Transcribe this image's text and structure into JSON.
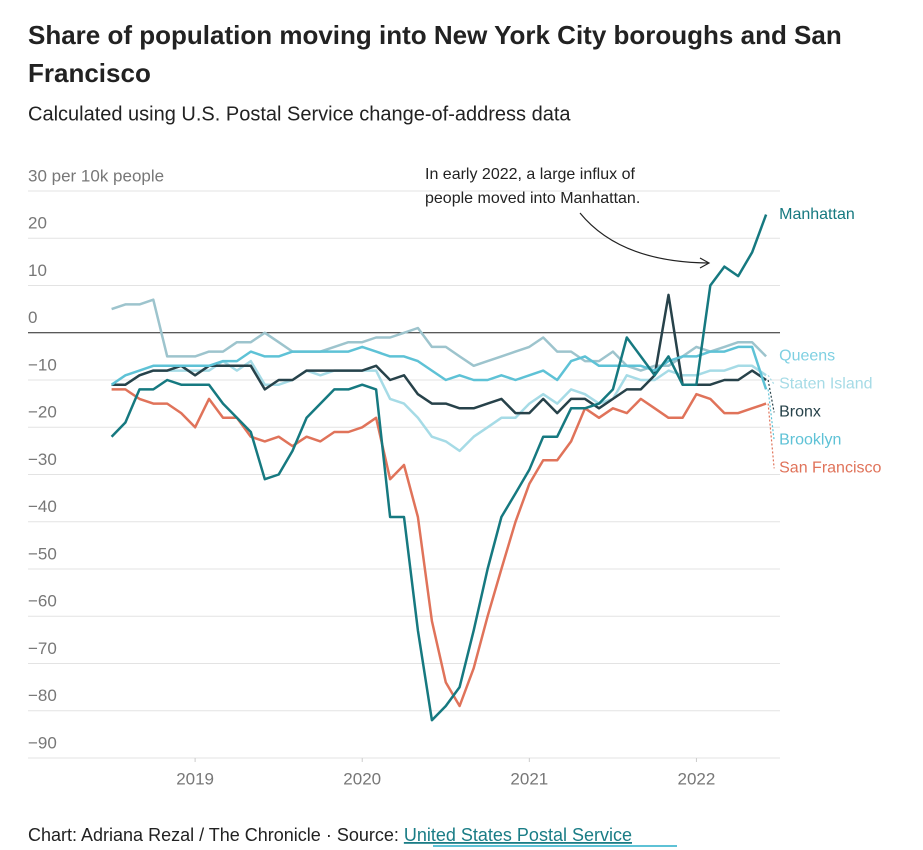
{
  "chart_data": {
    "type": "line",
    "title": "Share of population moving into New York City boroughs and San Francisco",
    "subtitle": "Calculated using U.S. Postal Service change-of-address data",
    "annotation": [
      "In early 2022, a large influx of",
      "people moved into Manhattan."
    ],
    "source_prefix": "Chart: Adriana Rezal / The Chronicle · Source: ",
    "source_link": "United States Postal Service",
    "x": [
      2018.5,
      2018.583,
      2018.667,
      2018.75,
      2018.833,
      2018.917,
      2019,
      2019.083,
      2019.167,
      2019.25,
      2019.333,
      2019.417,
      2019.5,
      2019.583,
      2019.667,
      2019.75,
      2019.833,
      2019.917,
      2020,
      2020.083,
      2020.167,
      2020.25,
      2020.333,
      2020.417,
      2020.5,
      2020.583,
      2020.667,
      2020.75,
      2020.833,
      2020.917,
      2021,
      2021.083,
      2021.167,
      2021.25,
      2021.333,
      2021.417,
      2021.5,
      2021.583,
      2021.667,
      2021.75,
      2021.833,
      2021.917,
      2022,
      2022.083,
      2022.167,
      2022.25,
      2022.333,
      2022.417
    ],
    "xlim": [
      2018,
      2022.5
    ],
    "xticks": [
      2019,
      2020,
      2021,
      2022
    ],
    "ylim": [
      -90,
      30
    ],
    "yticks": [
      {
        "value": 30,
        "label": "30 per 10k people"
      },
      20,
      10,
      0,
      {
        "value": -10,
        "label": "−10"
      },
      {
        "value": -20,
        "label": "−20"
      },
      {
        "value": -30,
        "label": "−30"
      },
      {
        "value": -40,
        "label": "−40"
      },
      {
        "value": -50,
        "label": "−50"
      },
      {
        "value": -60,
        "label": "−60"
      },
      {
        "value": -70,
        "label": "−70"
      },
      {
        "value": -80,
        "label": "−80"
      },
      {
        "value": -90,
        "label": "−90"
      }
    ],
    "grid": true,
    "series": [
      {
        "name": "Queens",
        "color": "#9dc4cd",
        "label_color": "#7fd0e2",
        "values": [
          5,
          6,
          6,
          7,
          -5,
          -5,
          -5,
          -4,
          -4,
          -2,
          -2,
          0,
          -2,
          -4,
          -4,
          -4,
          -3,
          -2,
          -2,
          -1,
          -1,
          0,
          1,
          -3,
          -3,
          -5,
          -7,
          -6,
          -5,
          -4,
          -3,
          -1,
          -4,
          -4,
          -6,
          -6,
          -4,
          -7,
          -8,
          -7,
          -7,
          -5,
          -3,
          -4,
          -3,
          -2,
          -2,
          -5
        ]
      },
      {
        "name": "Staten Island",
        "color": "#a6dbe6",
        "label_color": "#a6dbe6",
        "values": [
          -11,
          -11,
          -9,
          -8,
          -8,
          -8,
          -8,
          -8,
          -6,
          -8,
          -6,
          -11,
          -11,
          -10,
          -8,
          -9,
          -8,
          -8,
          -8,
          -8,
          -14,
          -15,
          -18,
          -22,
          -23,
          -25,
          -22,
          -20,
          -18,
          -18,
          -15,
          -13,
          -15,
          -12,
          -13,
          -15,
          -14,
          -9,
          -10,
          -10,
          -8,
          -9,
          -9,
          -8,
          -8,
          -7,
          -7,
          -9
        ]
      },
      {
        "name": "Bronx",
        "color": "#27424a",
        "label_color": "#27424a",
        "values": [
          -11,
          -11,
          -9,
          -8,
          -8,
          -7,
          -9,
          -7,
          -7,
          -7,
          -7,
          -12,
          -10,
          -10,
          -8,
          -8,
          -8,
          -8,
          -8,
          -7,
          -10,
          -9,
          -13,
          -15,
          -15,
          -16,
          -16,
          -15,
          -14,
          -17,
          -17,
          -14,
          -17,
          -14,
          -14,
          -16,
          -14,
          -12,
          -12,
          -9,
          8,
          -11,
          -11,
          -11,
          -10,
          -10,
          -8,
          -10
        ]
      },
      {
        "name": "Brooklyn",
        "color": "#5ec2d6",
        "label_color": "#5ec2d6",
        "values": [
          -11,
          -9,
          -8,
          -7,
          -7,
          -7,
          -7,
          -7,
          -6,
          -6,
          -4,
          -5,
          -5,
          -4,
          -4,
          -4,
          -4,
          -4,
          -3,
          -4,
          -5,
          -5,
          -6,
          -8,
          -10,
          -9,
          -10,
          -10,
          -9,
          -10,
          -9,
          -8,
          -10,
          -6,
          -5,
          -7,
          -7,
          -7,
          -7,
          -8,
          -6,
          -5,
          -5,
          -4,
          -4,
          -3,
          -3,
          -12
        ]
      },
      {
        "name": "San Francisco",
        "color": "#e0735a",
        "label_color": "#e0735a",
        "values": [
          -12,
          -12,
          -14,
          -15,
          -15,
          -17,
          -20,
          -14,
          -18,
          -18,
          -22,
          -23,
          -22,
          -24,
          -22,
          -23,
          -21,
          -21,
          -20,
          -18,
          -31,
          -28,
          -39,
          -61,
          -74,
          -79,
          -71,
          -60,
          -50,
          -40,
          -32,
          -27,
          -27,
          -23,
          -16,
          -18,
          -16,
          -17,
          -14,
          -16,
          -18,
          -18,
          -13,
          -14,
          -17,
          -17,
          -16,
          -15
        ]
      },
      {
        "name": "Manhattan",
        "color": "#167980",
        "label_color": "#167980",
        "values": [
          -22,
          -19,
          -12,
          -12,
          -10,
          -11,
          -11,
          -11,
          -15,
          -18,
          -21,
          -31,
          -30,
          -25,
          -18,
          -15,
          -12,
          -12,
          -11,
          -12,
          -39,
          -39,
          -63,
          -82,
          -79,
          -75,
          -63,
          -50,
          -39,
          -34,
          -29,
          -22,
          -22,
          -16,
          -16,
          -15,
          -12,
          -1,
          -5,
          -9,
          -5,
          -11,
          -11,
          10,
          14,
          12,
          17,
          25
        ]
      }
    ]
  }
}
